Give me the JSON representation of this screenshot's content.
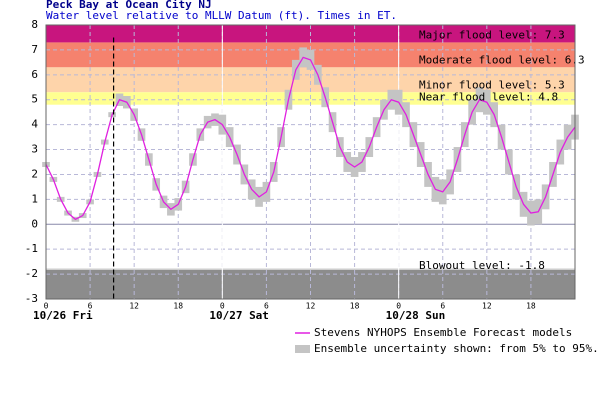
{
  "chart_data": {
    "type": "line",
    "title": "Peck Bay at Ocean City NJ",
    "subtitle": "Water level relative to MLLW Datum (ft). Times in ET.",
    "xlim": [
      0,
      72
    ],
    "xticks": [
      0,
      6,
      12,
      18,
      {
        "value": 24,
        "label": "0"
      },
      {
        "value": 30,
        "label": "6"
      },
      {
        "value": 36,
        "label": "12"
      },
      {
        "value": 42,
        "label": "18"
      },
      {
        "value": 48,
        "label": "0"
      },
      {
        "value": 54,
        "label": "6"
      },
      {
        "value": 60,
        "label": "12"
      },
      {
        "value": 66,
        "label": "18"
      }
    ],
    "day_labels": [
      {
        "value": 0,
        "label": "10/26 Fri"
      },
      {
        "value": 24,
        "label": "10/27 Sat"
      },
      {
        "value": 48,
        "label": "10/28 Sun"
      }
    ],
    "ylim": [
      -3,
      8
    ],
    "yticks": [
      -3,
      -2,
      -1,
      0,
      1,
      2,
      3,
      4,
      5,
      6,
      7,
      8
    ],
    "grid": true,
    "now": 9.2,
    "levels": [
      {
        "label": "Major flood level: 7.3",
        "value": 7.3,
        "color": "#c8157e"
      },
      {
        "label": "Moderate flood level: 6.3",
        "value": 6.3,
        "color": "#f5826e"
      },
      {
        "label": "Minor flood level: 5.3",
        "value": 5.3,
        "color": "#fed4aa"
      },
      {
        "label": "Near flood level: 4.8",
        "value": 4.8,
        "color": "#ffff90"
      }
    ],
    "blowout": {
      "label": "Blowout level: -1.8",
      "value": -1.8,
      "color": "#8c8c8c"
    },
    "x": [
      0,
      1,
      2,
      3,
      4,
      5,
      6,
      7,
      8,
      9,
      10,
      11,
      12,
      13,
      14,
      15,
      16,
      17,
      18,
      19,
      20,
      21,
      22,
      23,
      24,
      25,
      26,
      27,
      28,
      29,
      30,
      31,
      32,
      33,
      34,
      35,
      36,
      37,
      38,
      39,
      40,
      41,
      42,
      43,
      44,
      45,
      46,
      47,
      48,
      49,
      50,
      51,
      52,
      53,
      54,
      55,
      56,
      57,
      58,
      59,
      60,
      61,
      62,
      63,
      64,
      65,
      66,
      67,
      68,
      69,
      70,
      71,
      72
    ],
    "band": {
      "name": "Ensemble uncertainty shown: from 5% to 95%.",
      "color": "#c4c4c4",
      "lower": [
        2.3,
        1.7,
        0.9,
        0.35,
        0.1,
        0.25,
        0.8,
        1.9,
        3.2,
        4.3,
        4.75,
        4.65,
        4.15,
        3.35,
        2.35,
        1.35,
        0.65,
        0.35,
        0.55,
        1.25,
        2.35,
        3.35,
        3.85,
        3.95,
        3.6,
        3.1,
        2.4,
        1.6,
        1.0,
        0.7,
        0.9,
        1.7,
        3.1,
        4.6,
        5.8,
        6.3,
        6.2,
        5.6,
        4.7,
        3.7,
        2.7,
        2.1,
        1.9,
        2.1,
        2.7,
        3.5,
        4.2,
        4.6,
        4.4,
        3.9,
        3.1,
        2.3,
        1.5,
        0.9,
        0.8,
        1.2,
        2.1,
        3.1,
        4.0,
        4.5,
        4.4,
        3.9,
        3.0,
        2.0,
        1.0,
        0.3,
        -0.05,
        0.0,
        0.6,
        1.5,
        2.4,
        3.0,
        3.4
      ],
      "upper": [
        2.5,
        1.9,
        1.1,
        0.55,
        0.3,
        0.45,
        1.0,
        2.1,
        3.4,
        4.5,
        5.25,
        5.15,
        4.65,
        3.85,
        2.85,
        1.85,
        1.15,
        0.85,
        1.05,
        1.75,
        2.85,
        3.85,
        4.35,
        4.45,
        4.4,
        3.9,
        3.2,
        2.4,
        1.8,
        1.5,
        1.7,
        2.5,
        3.9,
        5.4,
        6.6,
        7.1,
        7.0,
        6.4,
        5.5,
        4.5,
        3.5,
        2.9,
        2.7,
        2.9,
        3.5,
        4.3,
        5.0,
        5.4,
        5.4,
        4.9,
        4.1,
        3.3,
        2.5,
        1.9,
        1.8,
        2.2,
        3.1,
        4.1,
        5.0,
        5.5,
        5.4,
        4.9,
        4.0,
        3.0,
        2.0,
        1.3,
        0.95,
        1.0,
        1.6,
        2.5,
        3.4,
        4.0,
        4.4
      ]
    },
    "series": [
      {
        "name": "Stevens NYHOPS Ensemble Forecast models",
        "color": "#e020e0",
        "values": [
          2.4,
          1.8,
          1.0,
          0.45,
          0.2,
          0.35,
          0.9,
          2.0,
          3.3,
          4.4,
          5.0,
          4.9,
          4.4,
          3.6,
          2.6,
          1.6,
          0.9,
          0.6,
          0.8,
          1.5,
          2.6,
          3.6,
          4.1,
          4.2,
          4.0,
          3.5,
          2.8,
          2.0,
          1.4,
          1.1,
          1.3,
          2.1,
          3.5,
          5.0,
          6.2,
          6.7,
          6.6,
          6.0,
          5.1,
          4.1,
          3.1,
          2.5,
          2.3,
          2.5,
          3.1,
          3.9,
          4.6,
          5.0,
          4.9,
          4.4,
          3.6,
          2.8,
          2.0,
          1.4,
          1.3,
          1.7,
          2.6,
          3.6,
          4.5,
          5.0,
          4.9,
          4.4,
          3.5,
          2.5,
          1.5,
          0.8,
          0.45,
          0.5,
          1.1,
          2.0,
          2.9,
          3.5,
          3.9
        ]
      }
    ]
  }
}
